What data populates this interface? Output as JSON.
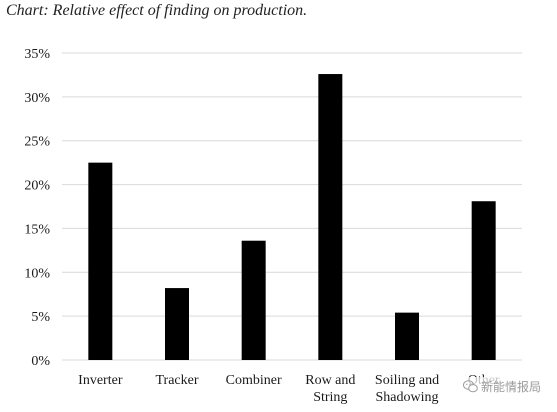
{
  "title": "Chart: Relative effect of finding on production.",
  "chart_data": {
    "type": "bar",
    "categories": [
      "Inverter",
      "Tracker",
      "Combiner",
      "Row and\nString",
      "Soiling and\nShadowing",
      "Other"
    ],
    "values": [
      22.5,
      8.2,
      13.6,
      32.6,
      5.4,
      18.1
    ],
    "unit": "%",
    "yticks": [
      "0%",
      "5%",
      "10%",
      "15%",
      "20%",
      "25%",
      "30%",
      "35%"
    ],
    "ylim": [
      0,
      35
    ],
    "bar_color": "#000000",
    "grid": true,
    "grid_color": "#d9d9d9",
    "legend": "none"
  },
  "watermark": {
    "text": "新能情报局",
    "icon": "wechat-icon"
  }
}
